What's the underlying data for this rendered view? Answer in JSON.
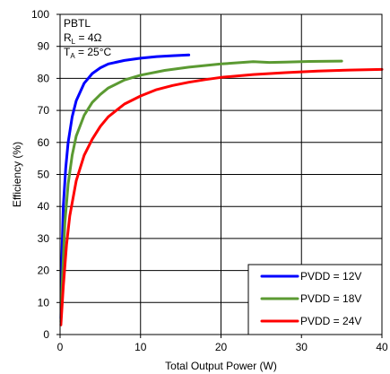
{
  "chart_data": {
    "type": "line",
    "title": "",
    "xlabel": "Total Output Power (W)",
    "ylabel": "Efficiency (%)",
    "xlim": [
      0,
      40
    ],
    "ylim": [
      0,
      100
    ],
    "xticks": [
      "0",
      "10",
      "20",
      "30",
      "40"
    ],
    "yticks": [
      "0",
      "10",
      "20",
      "30",
      "40",
      "50",
      "60",
      "70",
      "80",
      "90",
      "100"
    ],
    "grid": true,
    "legend_position": "bottom-right",
    "annotation": {
      "line1": "PBTL",
      "line2_main": "R",
      "line2_sub": "L",
      "line2_rest": " = 4Ω",
      "line3_main": "T",
      "line3_sub": "A",
      "line3_rest": " = 25°C"
    },
    "series": [
      {
        "name": "PVDD = 12V",
        "color": "#0000ff",
        "x": [
          0.1,
          0.2,
          0.4,
          0.7,
          1.0,
          1.5,
          2.0,
          3.0,
          4.0,
          5.0,
          6.0,
          8.0,
          10.0,
          12.0,
          14.0,
          16.0
        ],
        "y": [
          5,
          22,
          40,
          52,
          60,
          68,
          73,
          78.5,
          81.5,
          83.3,
          84.5,
          85.6,
          86.3,
          86.8,
          87.1,
          87.3
        ]
      },
      {
        "name": "PVDD = 18V",
        "color": "#5b9a32",
        "x": [
          0.1,
          0.3,
          0.6,
          1.0,
          1.5,
          2.0,
          3.0,
          4.0,
          5.0,
          6.0,
          8.0,
          10.0,
          13.0,
          16.0,
          20.0,
          24.0,
          26.0,
          28.0,
          31.0,
          35.0
        ],
        "y": [
          4,
          18,
          35,
          47,
          56,
          62,
          68.5,
          72.5,
          75,
          77,
          79.5,
          81,
          82.5,
          83.5,
          84.5,
          85.2,
          85.0,
          85.1,
          85.3,
          85.4
        ]
      },
      {
        "name": "PVDD = 24V",
        "color": "#ff0000",
        "x": [
          0.1,
          0.4,
          0.8,
          1.2,
          2.0,
          3.0,
          4.0,
          5.0,
          6.0,
          7.0,
          8.0,
          10.0,
          12.0,
          14.0,
          16.0,
          18.0,
          20.0,
          24.0,
          28.0,
          32.0,
          36.0,
          40.0
        ],
        "y": [
          3,
          15,
          28,
          37,
          48,
          56,
          61,
          65,
          68,
          70,
          72,
          74.5,
          76.5,
          77.8,
          78.8,
          79.6,
          80.3,
          81.2,
          81.8,
          82.3,
          82.6,
          82.8
        ]
      }
    ]
  }
}
